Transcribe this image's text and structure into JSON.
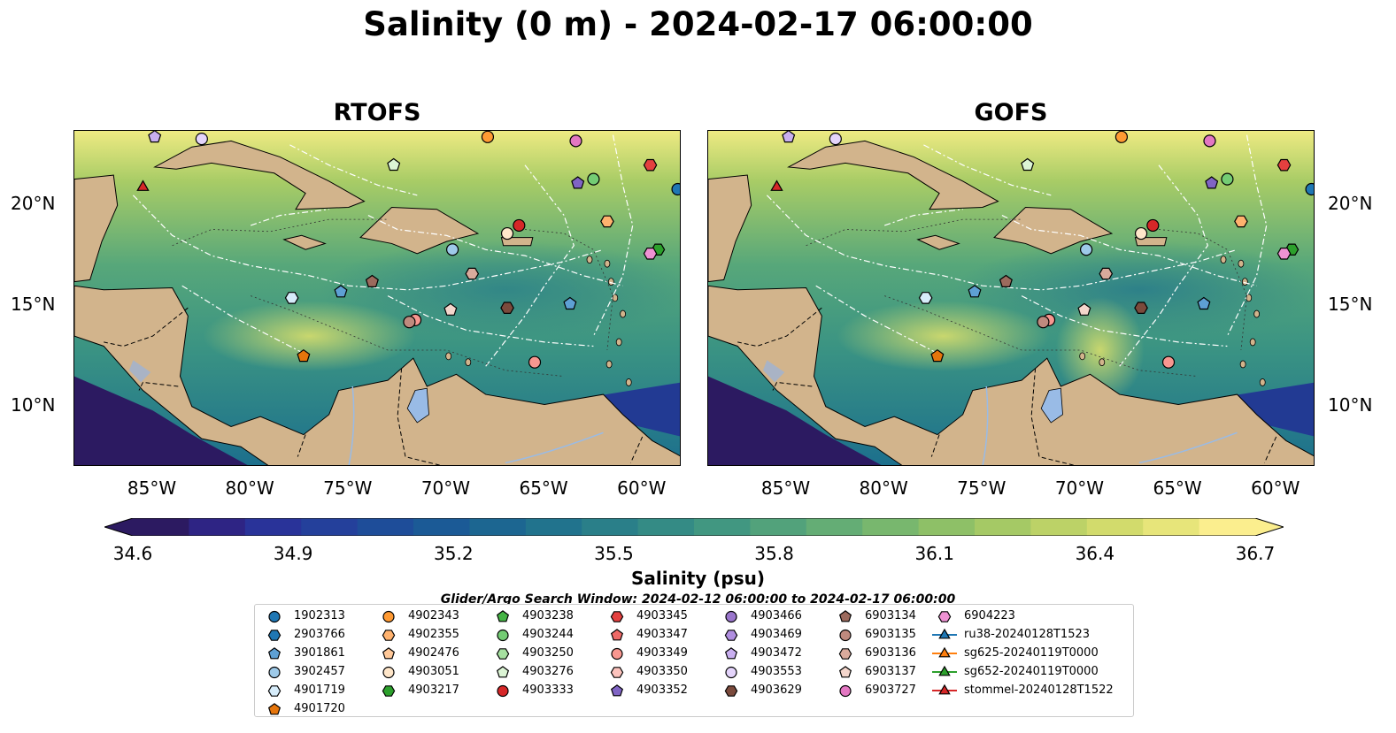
{
  "title": "Salinity (0 m) - 2024-02-17 06:00:00",
  "panels": [
    {
      "title": "RTOFS"
    },
    {
      "title": "GOFS"
    }
  ],
  "axes": {
    "lon_labels": [
      "85°W",
      "80°W",
      "75°W",
      "70°W",
      "65°W",
      "60°W"
    ],
    "lon_values": [
      -85,
      -80,
      -75,
      -70,
      -65,
      -60
    ],
    "lat_labels": [
      "20°N",
      "15°N",
      "10°N"
    ],
    "lat_values": [
      20,
      15,
      10
    ],
    "lon_range": [
      -89,
      -58
    ],
    "lat_range": [
      7,
      23.7
    ]
  },
  "colorbar": {
    "label": "Salinity (psu)",
    "ticks": [
      "34.6",
      "34.9",
      "35.2",
      "35.5",
      "35.8",
      "36.1",
      "36.4",
      "36.7"
    ],
    "range": [
      34.6,
      36.7
    ],
    "colors": [
      "#2c1a61",
      "#2e2484",
      "#293399",
      "#24409b",
      "#1e4d99",
      "#1b5a96",
      "#1c6691",
      "#21738d",
      "#2a7f89",
      "#348b85",
      "#419781",
      "#52a27b",
      "#64ad75",
      "#78b76e",
      "#8ec067",
      "#a5c965",
      "#bcd267",
      "#d2db6c",
      "#e7e57a",
      "#fbee8e"
    ]
  },
  "legend": {
    "title": "Glider/Argo Search Window: 2024-02-12 06:00:00 to 2024-02-17 06:00:00",
    "items": [
      {
        "label": "1902313",
        "marker": "circle",
        "color": "#1f77b4"
      },
      {
        "label": "2903766",
        "marker": "hexagon",
        "color": "#1f77b4"
      },
      {
        "label": "3901861",
        "marker": "pentagon",
        "color": "#5ea0d4"
      },
      {
        "label": "3902457",
        "marker": "circle",
        "color": "#9ecae9"
      },
      {
        "label": "4901719",
        "marker": "hexagon",
        "color": "#d6ecfa"
      },
      {
        "label": "4901720",
        "marker": "pentagon",
        "color": "#e6750b"
      },
      {
        "label": "4902343",
        "marker": "circle",
        "color": "#ff9a33"
      },
      {
        "label": "4902355",
        "marker": "hexagon",
        "color": "#ffb26e"
      },
      {
        "label": "4902476",
        "marker": "pentagon",
        "color": "#ffc898"
      },
      {
        "label": "4903051",
        "marker": "circle",
        "color": "#ffe6c9"
      },
      {
        "label": "4903217",
        "marker": "hexagon",
        "color": "#2ca02c"
      },
      {
        "label": "4903238",
        "marker": "pentagon",
        "color": "#45b445"
      },
      {
        "label": "4903244",
        "marker": "circle",
        "color": "#74cc74"
      },
      {
        "label": "4903250",
        "marker": "hexagon",
        "color": "#a6e0a0"
      },
      {
        "label": "4903276",
        "marker": "pentagon",
        "color": "#dcf5d5"
      },
      {
        "label": "4903333",
        "marker": "circle",
        "color": "#d62728"
      },
      {
        "label": "4903345",
        "marker": "hexagon",
        "color": "#e4403f"
      },
      {
        "label": "4903347",
        "marker": "pentagon",
        "color": "#ef6a67"
      },
      {
        "label": "4903349",
        "marker": "circle",
        "color": "#f89790"
      },
      {
        "label": "4903350",
        "marker": "hexagon",
        "color": "#fcc3bd"
      },
      {
        "label": "4903352",
        "marker": "pentagon",
        "color": "#8064c4"
      },
      {
        "label": "4903466",
        "marker": "circle",
        "color": "#9a76cc"
      },
      {
        "label": "4903469",
        "marker": "hexagon",
        "color": "#b08ee0"
      },
      {
        "label": "4903472",
        "marker": "pentagon",
        "color": "#c9aff0"
      },
      {
        "label": "4903553",
        "marker": "circle",
        "color": "#e4d4fb"
      },
      {
        "label": "4903629",
        "marker": "hexagon",
        "color": "#7b4a3c"
      },
      {
        "label": "6903134",
        "marker": "pentagon",
        "color": "#9c6a5d"
      },
      {
        "label": "6903135",
        "marker": "circle",
        "color": "#bf8a7e"
      },
      {
        "label": "6903136",
        "marker": "hexagon",
        "color": "#d9aa9c"
      },
      {
        "label": "6903137",
        "marker": "pentagon",
        "color": "#f4d6cc"
      },
      {
        "label": "6903727",
        "marker": "circle",
        "color": "#e377c2"
      },
      {
        "label": "6904223",
        "marker": "hexagon",
        "color": "#ee92d3"
      },
      {
        "label": "ru38-20240128T1523",
        "marker": "triangle-line",
        "color": "#1f77b4"
      },
      {
        "label": "sg625-20240119T0000",
        "marker": "triangle-line",
        "color": "#ff7f0e"
      },
      {
        "label": "sg652-20240119T0000",
        "marker": "triangle-line",
        "color": "#2ca02c"
      },
      {
        "label": "stommel-20240128T1522",
        "marker": "triangle-line",
        "color": "#d62728"
      }
    ]
  },
  "map": {
    "land_color": "#d2b48c",
    "lake_color": "#99bbe6",
    "floats": [
      {
        "id": "1902313",
        "lon": -58.2,
        "lat": 20.8
      },
      {
        "id": "6903727",
        "lon": -63.4,
        "lat": 23.2
      },
      {
        "id": "4902343",
        "lon": -67.9,
        "lat": 23.4
      },
      {
        "id": "4903345",
        "lon": -59.6,
        "lat": 22.0
      },
      {
        "id": "4903352",
        "lon": -63.3,
        "lat": 21.1
      },
      {
        "id": "4903244",
        "lon": -62.5,
        "lat": 21.3
      },
      {
        "id": "4902355",
        "lon": -61.8,
        "lat": 19.2
      },
      {
        "id": "4903333",
        "lon": -66.3,
        "lat": 19.0
      },
      {
        "id": "4903051",
        "lon": -66.9,
        "lat": 18.6
      },
      {
        "id": "3902457",
        "lon": -69.7,
        "lat": 17.8
      },
      {
        "id": "4903217",
        "lon": -59.2,
        "lat": 17.8
      },
      {
        "id": "6904223",
        "lon": -59.6,
        "lat": 17.6
      },
      {
        "id": "4903276",
        "lon": -72.7,
        "lat": 22.0
      },
      {
        "id": "4903553",
        "lon": -82.5,
        "lat": 23.3
      },
      {
        "id": "4903472",
        "lon": -84.9,
        "lat": 23.4
      },
      {
        "id": "6903134",
        "lon": -73.8,
        "lat": 16.2
      },
      {
        "id": "6903136",
        "lon": -68.7,
        "lat": 16.6
      },
      {
        "id": "3901861",
        "lon": -75.4,
        "lat": 15.7
      },
      {
        "id": "3901861b",
        "lon": -63.7,
        "lat": 15.1
      },
      {
        "id": "4901719",
        "lon": -77.9,
        "lat": 15.4
      },
      {
        "id": "4903629",
        "lon": -66.9,
        "lat": 14.9
      },
      {
        "id": "6903137",
        "lon": -69.8,
        "lat": 14.8
      },
      {
        "id": "4903349",
        "lon": -71.6,
        "lat": 14.3
      },
      {
        "id": "6903135",
        "lon": -71.9,
        "lat": 14.2
      },
      {
        "id": "4901720",
        "lon": -77.3,
        "lat": 12.5
      },
      {
        "id": "4903349b",
        "lon": -65.5,
        "lat": 12.2
      },
      {
        "id": "stommel",
        "lon": -85.5,
        "lat": 20.9
      }
    ]
  }
}
